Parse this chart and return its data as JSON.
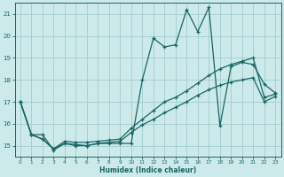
{
  "xlabel": "Humidex (Indice chaleur)",
  "x_values": [
    0,
    1,
    2,
    3,
    4,
    5,
    6,
    7,
    8,
    9,
    10,
    11,
    12,
    13,
    14,
    15,
    16,
    17,
    18,
    19,
    20,
    21,
    22,
    23
  ],
  "line_volatile": [
    17.0,
    15.5,
    15.5,
    14.8,
    15.1,
    15.0,
    15.0,
    15.1,
    15.1,
    15.1,
    15.1,
    18.0,
    19.9,
    19.5,
    19.6,
    21.2,
    20.2,
    21.3,
    15.9,
    18.6,
    18.8,
    18.7,
    17.8,
    17.4
  ],
  "line_trend": [
    17.0,
    15.5,
    15.3,
    14.85,
    15.2,
    15.15,
    15.15,
    15.2,
    15.25,
    15.3,
    15.8,
    16.2,
    16.6,
    17.0,
    17.2,
    17.5,
    17.85,
    18.2,
    18.5,
    18.7,
    18.85,
    19.0,
    17.2,
    17.35
  ],
  "line_flat": [
    17.0,
    15.5,
    15.3,
    14.85,
    15.1,
    15.05,
    15.0,
    15.1,
    15.15,
    15.2,
    15.6,
    15.95,
    16.2,
    16.5,
    16.75,
    17.0,
    17.3,
    17.55,
    17.75,
    17.9,
    18.0,
    18.1,
    17.0,
    17.25
  ],
  "bg_color": "#cceaea",
  "grid_color": "#a8d0d0",
  "line_color": "#1a6464",
  "ylim": [
    14.5,
    21.5
  ],
  "xlim": [
    -0.5,
    23.5
  ],
  "yticks": [
    15,
    16,
    17,
    18,
    19,
    20,
    21
  ],
  "xticks": [
    0,
    1,
    2,
    3,
    4,
    5,
    6,
    7,
    8,
    9,
    10,
    11,
    12,
    13,
    14,
    15,
    16,
    17,
    18,
    19,
    20,
    21,
    22,
    23
  ]
}
